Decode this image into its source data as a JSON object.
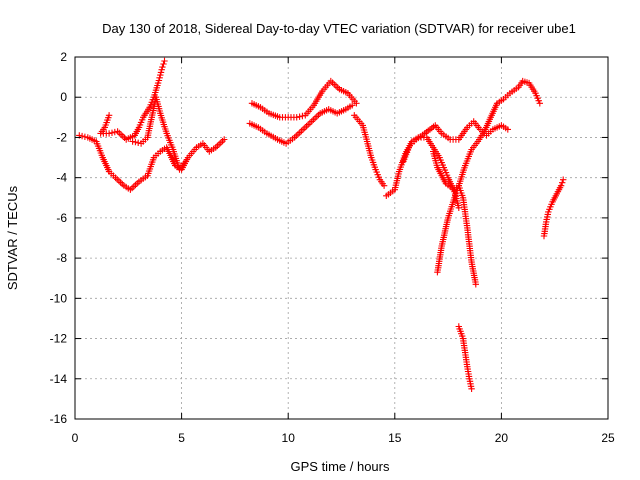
{
  "chart_data": {
    "type": "scatter",
    "title": "Day 130 of 2018, Sidereal Day-to-day VTEC variation (SDTVAR) for receiver ube1",
    "xlabel": "GPS time / hours",
    "ylabel": "SDTVAR / TECUs",
    "xlim": [
      0,
      25
    ],
    "ylim": [
      -16,
      2
    ],
    "xticks": [
      "0",
      "5",
      "10",
      "15",
      "20",
      "25"
    ],
    "yticks": [
      "2",
      "0",
      "-2",
      "-4",
      "-6",
      "-8",
      "-10",
      "-12",
      "-14",
      "-16"
    ],
    "grid": true,
    "marker": "plus",
    "color": "#ff0000",
    "series": [
      {
        "points": [
          [
            0.2,
            -1.9
          ],
          [
            0.6,
            -2.0
          ],
          [
            1.0,
            -2.2
          ],
          [
            1.3,
            -3.0
          ],
          [
            1.6,
            -3.7
          ],
          [
            1.9,
            -4.0
          ],
          [
            2.3,
            -4.4
          ],
          [
            2.6,
            -4.6
          ],
          [
            3.0,
            -4.2
          ],
          [
            3.4,
            -3.9
          ],
          [
            3.7,
            -3.0
          ],
          [
            4.0,
            -2.7
          ],
          [
            4.3,
            -2.5
          ],
          [
            4.7,
            -3.4
          ],
          [
            5.0,
            -3.6
          ],
          [
            5.3,
            -3.0
          ],
          [
            5.7,
            -2.5
          ],
          [
            6.0,
            -2.3
          ],
          [
            6.3,
            -2.7
          ],
          [
            6.6,
            -2.5
          ],
          [
            7.0,
            -2.1
          ]
        ]
      },
      {
        "points": [
          [
            1.6,
            -0.9
          ],
          [
            1.4,
            -1.5
          ],
          [
            1.2,
            -1.8
          ],
          [
            1.6,
            -1.8
          ],
          [
            2.0,
            -1.7
          ],
          [
            2.4,
            -2.1
          ],
          [
            2.8,
            -1.9
          ],
          [
            3.0,
            -1.5
          ],
          [
            3.2,
            -1.0
          ],
          [
            3.5,
            -0.5
          ],
          [
            3.7,
            0.0
          ],
          [
            3.9,
            0.7
          ],
          [
            4.0,
            1.1
          ],
          [
            4.1,
            1.5
          ],
          [
            4.2,
            1.8
          ]
        ]
      },
      {
        "points": [
          [
            2.7,
            -2.2
          ],
          [
            3.1,
            -2.3
          ],
          [
            3.4,
            -2.0
          ],
          [
            3.6,
            -1.0
          ],
          [
            3.8,
            0.0
          ],
          [
            4.0,
            -0.8
          ],
          [
            4.3,
            -1.8
          ],
          [
            4.6,
            -2.6
          ],
          [
            4.9,
            -3.6
          ],
          [
            5.1,
            -3.3
          ]
        ]
      },
      {
        "points": [
          [
            8.3,
            -0.3
          ],
          [
            8.7,
            -0.5
          ],
          [
            9.1,
            -0.8
          ],
          [
            9.6,
            -1.0
          ],
          [
            10.0,
            -1.0
          ],
          [
            10.4,
            -1.0
          ],
          [
            10.8,
            -0.9
          ],
          [
            11.2,
            -0.4
          ],
          [
            11.6,
            0.3
          ],
          [
            12.0,
            0.8
          ],
          [
            12.4,
            0.4
          ],
          [
            12.8,
            0.2
          ],
          [
            13.2,
            -0.3
          ]
        ]
      },
      {
        "points": [
          [
            8.2,
            -1.3
          ],
          [
            8.6,
            -1.5
          ],
          [
            9.0,
            -1.8
          ],
          [
            9.5,
            -2.1
          ],
          [
            9.9,
            -2.3
          ],
          [
            10.3,
            -2.0
          ],
          [
            10.7,
            -1.6
          ],
          [
            11.1,
            -1.2
          ],
          [
            11.5,
            -0.8
          ],
          [
            11.9,
            -0.6
          ],
          [
            12.3,
            -0.8
          ],
          [
            12.7,
            -0.6
          ],
          [
            13.0,
            -0.4
          ]
        ]
      },
      {
        "points": [
          [
            13.1,
            -0.9
          ],
          [
            13.5,
            -1.4
          ],
          [
            13.7,
            -2.2
          ],
          [
            13.9,
            -3.0
          ],
          [
            14.1,
            -3.6
          ],
          [
            14.3,
            -4.1
          ],
          [
            14.5,
            -4.4
          ]
        ]
      },
      {
        "points": [
          [
            14.6,
            -4.9
          ],
          [
            15.0,
            -4.6
          ],
          [
            15.2,
            -3.7
          ],
          [
            15.5,
            -2.8
          ],
          [
            15.8,
            -2.2
          ],
          [
            16.1,
            -2.0
          ],
          [
            16.5,
            -2.0
          ],
          [
            16.8,
            -2.5
          ],
          [
            17.1,
            -3.0
          ],
          [
            17.3,
            -3.5
          ],
          [
            17.5,
            -4.0
          ],
          [
            17.8,
            -4.7
          ],
          [
            18.0,
            -5.5
          ]
        ]
      },
      {
        "points": [
          [
            15.4,
            -3.2
          ],
          [
            15.7,
            -2.4
          ],
          [
            16.0,
            -2.1
          ],
          [
            16.4,
            -1.8
          ],
          [
            16.9,
            -1.4
          ],
          [
            17.2,
            -1.8
          ],
          [
            17.6,
            -2.1
          ],
          [
            18.0,
            -2.1
          ],
          [
            18.4,
            -1.5
          ],
          [
            18.7,
            -1.2
          ],
          [
            19.0,
            -1.6
          ],
          [
            19.3,
            -1.9
          ],
          [
            19.6,
            -1.6
          ],
          [
            20.0,
            -1.4
          ],
          [
            20.3,
            -1.6
          ]
        ]
      },
      {
        "points": [
          [
            17.0,
            -8.7
          ],
          [
            17.2,
            -7.4
          ],
          [
            17.5,
            -6.0
          ],
          [
            17.8,
            -5.0
          ],
          [
            18.0,
            -4.4
          ],
          [
            18.2,
            -5.0
          ],
          [
            18.4,
            -6.5
          ],
          [
            18.6,
            -8.2
          ],
          [
            18.8,
            -9.3
          ]
        ]
      },
      {
        "points": [
          [
            16.8,
            -2.7
          ],
          [
            17.0,
            -3.5
          ],
          [
            17.4,
            -4.3
          ],
          [
            17.8,
            -4.6
          ],
          [
            18.0,
            -4.4
          ],
          [
            18.3,
            -3.4
          ],
          [
            18.6,
            -2.6
          ],
          [
            18.9,
            -2.2
          ],
          [
            19.2,
            -1.7
          ],
          [
            19.5,
            -1.0
          ],
          [
            19.8,
            -0.3
          ],
          [
            20.1,
            -0.1
          ],
          [
            20.4,
            0.2
          ],
          [
            20.8,
            0.5
          ],
          [
            21.0,
            0.8
          ],
          [
            21.3,
            0.7
          ],
          [
            21.6,
            0.2
          ],
          [
            21.8,
            -0.3
          ]
        ]
      },
      {
        "points": [
          [
            18.0,
            -11.4
          ],
          [
            18.2,
            -12.0
          ],
          [
            18.3,
            -12.7
          ],
          [
            18.4,
            -13.4
          ],
          [
            18.5,
            -14.0
          ],
          [
            18.6,
            -14.5
          ]
        ]
      },
      {
        "points": [
          [
            22.0,
            -6.9
          ],
          [
            22.1,
            -6.2
          ],
          [
            22.2,
            -5.7
          ],
          [
            22.4,
            -5.2
          ],
          [
            22.6,
            -4.8
          ],
          [
            22.8,
            -4.4
          ],
          [
            22.9,
            -4.1
          ]
        ]
      }
    ]
  }
}
